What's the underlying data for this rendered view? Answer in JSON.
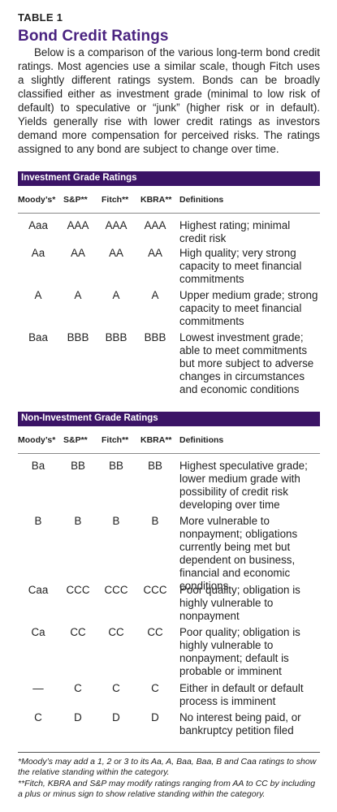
{
  "table_label": "TABLE 1",
  "title": "Bond Credit Ratings",
  "intro": "Below is a comparison of the various long-term bond credit ratings. Most agencies use a similar scale, though Fitch uses a slightly different ratings system. Bonds can be broadly classified either as investment grade (minimal to low risk of default) to speculative or “junk” (higher risk or in default). Yields generally rise with lower credit ratings as investors demand more compensation for perceived risks. The ratings assigned to any bond are subject to change over time.",
  "columns": {
    "moody": "Moody’s*",
    "sp": "S&P**",
    "fitch": "Fitch**",
    "kbra": "KBRA**",
    "definitions": "Definitions"
  },
  "investment": {
    "heading": "Investment Grade Ratings",
    "rows": [
      {
        "moody": "Aaa",
        "sp": "AAA",
        "fitch": "AAA",
        "kbra": "AAA",
        "def": "Highest rating; minimal credit risk"
      },
      {
        "moody": "Aa",
        "sp": "AA",
        "fitch": "AA",
        "kbra": "AA",
        "def": "High quality; very strong capacity to meet financial commitments"
      },
      {
        "moody": "A",
        "sp": "A",
        "fitch": "A",
        "kbra": "A",
        "def": "Upper medium grade; strong capacity to meet financial commitments"
      },
      {
        "moody": "Baa",
        "sp": "BBB",
        "fitch": "BBB",
        "kbra": "BBB",
        "def": "Lowest investment grade; able to meet commitments but more subject to adverse changes in circumstances and economic conditions"
      }
    ]
  },
  "noninvestment": {
    "heading": "Non-Investment Grade Ratings",
    "rows": [
      {
        "moody": "Ba",
        "sp": "BB",
        "fitch": "BB",
        "kbra": "BB",
        "def": "Highest speculative grade; lower medium grade with possibility of credit risk developing over time"
      },
      {
        "moody": "B",
        "sp": "B",
        "fitch": "B",
        "kbra": "B",
        "def": "More vulnerable to nonpayment; obligations currently being met but dependent on business, financial and economic conditions"
      },
      {
        "moody": "Caa",
        "sp": "CCC",
        "fitch": "CCC",
        "kbra": "CCC",
        "def": "Poor quality; obligation is highly vulnerable to nonpayment"
      },
      {
        "moody": "Ca",
        "sp": "CC",
        "fitch": "CC",
        "kbra": "CC",
        "def": "Poor quality; obligation is highly vulnerable to nonpayment; default is probable or imminent"
      },
      {
        "moody": "—",
        "sp": "C",
        "fitch": "C",
        "kbra": "C",
        "def": "Either in default or default process is imminent"
      },
      {
        "moody": "C",
        "sp": "D",
        "fitch": "D",
        "kbra": "D",
        "def": "No interest being paid, or bankruptcy petition filed"
      }
    ]
  },
  "footnotes": [
    "*Moody’s may add a 1, 2 or 3 to its Aa, A, Baa, Baa, B and Caa ratings to show the relative standing within the category.",
    "**Fitch, KBRA and S&P may modify ratings ranging from AA to CC by including a plus or minus sign to show relative standing within the category."
  ]
}
